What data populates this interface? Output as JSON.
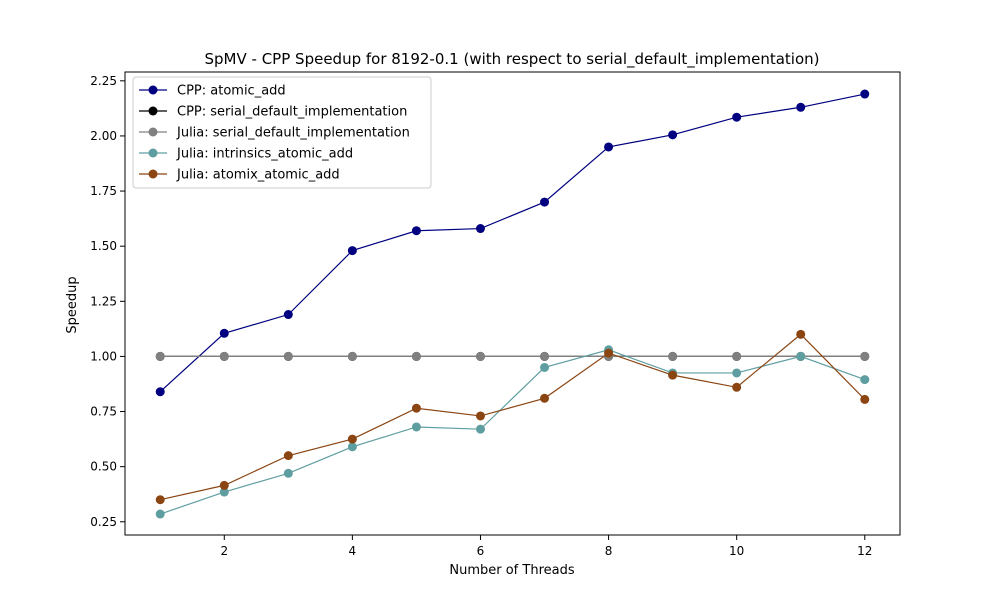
{
  "chart_data": {
    "type": "line",
    "title": "SpMV - CPP Speedup for 8192-0.1 (with respect to serial_default_implementation)",
    "xlabel": "Number of Threads",
    "ylabel": "Speedup",
    "xlim": [
      0.45,
      12.55
    ],
    "ylim": [
      0.19,
      2.29
    ],
    "xticks": [
      2,
      4,
      6,
      8,
      10,
      12
    ],
    "yticks": [
      0.25,
      0.5,
      0.75,
      1.0,
      1.25,
      1.5,
      1.75,
      2.0,
      2.25
    ],
    "xtick_labels": [
      "2",
      "4",
      "6",
      "8",
      "10",
      "12"
    ],
    "ytick_labels": [
      "0.25",
      "0.50",
      "0.75",
      "1.00",
      "1.25",
      "1.50",
      "1.75",
      "2.00",
      "2.25"
    ],
    "grid": false,
    "legend_position": "top-left",
    "x": [
      1,
      2,
      3,
      4,
      5,
      6,
      7,
      8,
      9,
      10,
      11,
      12
    ],
    "series": [
      {
        "name": "CPP: atomic_add",
        "color": "#000080",
        "values": [
          0.84,
          1.105,
          1.19,
          1.48,
          1.57,
          1.58,
          1.7,
          1.95,
          2.005,
          2.085,
          2.13,
          2.19
        ]
      },
      {
        "name": "CPP: serial_default_implementation",
        "color": "#000000",
        "values": [
          1.0,
          1.0,
          1.0,
          1.0,
          1.0,
          1.0,
          1.0,
          1.0,
          1.0,
          1.0,
          1.0,
          1.0
        ]
      },
      {
        "name": "Julia: serial_default_implementation",
        "color": "#808080",
        "values": [
          1.0,
          1.0,
          1.0,
          1.0,
          1.0,
          1.0,
          1.0,
          1.0,
          1.0,
          1.0,
          1.0,
          1.0
        ]
      },
      {
        "name": "Julia: intrinsics_atomic_add",
        "color": "#5f9ea0",
        "values": [
          0.285,
          0.385,
          0.47,
          0.59,
          0.68,
          0.67,
          0.95,
          1.03,
          0.925,
          0.925,
          1.0,
          0.895
        ]
      },
      {
        "name": "Julia: atomix_atomic_add",
        "color": "#8b4513",
        "values": [
          0.35,
          0.415,
          0.55,
          0.625,
          0.765,
          0.73,
          0.81,
          1.015,
          0.915,
          0.86,
          1.1,
          0.805
        ]
      }
    ]
  }
}
